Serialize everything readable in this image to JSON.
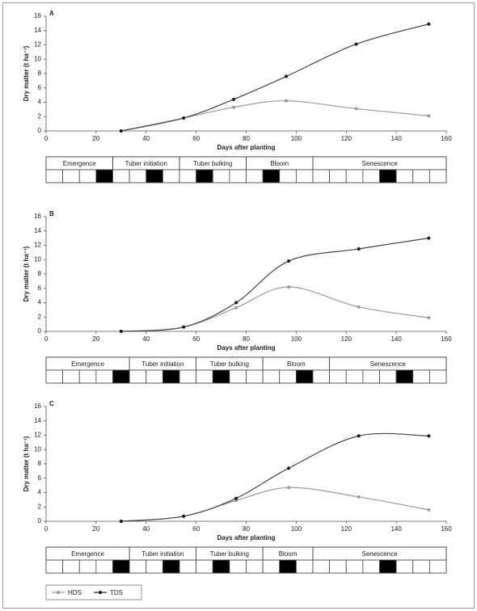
{
  "chart_data": [
    {
      "type": "line",
      "title": "A",
      "x_label": "Days after planting",
      "y_label": "Dry matter (t ha⁻¹)",
      "x": [
        30,
        55,
        75,
        96,
        124,
        153
      ],
      "series": [
        {
          "name": "HDS",
          "color": "#9a9a9a",
          "values": [
            0,
            1.8,
            3.3,
            4.2,
            3.1,
            2.1
          ]
        },
        {
          "name": "TDS",
          "color": "#1a1a1a",
          "values": [
            0,
            1.8,
            4.4,
            7.6,
            12.1,
            14.9
          ]
        }
      ],
      "xlim": [
        0,
        160
      ],
      "ylim": [
        0,
        16
      ],
      "xticks": [
        0,
        20,
        40,
        60,
        80,
        100,
        120,
        140,
        160
      ],
      "yticks": [
        0,
        2,
        4,
        6,
        8,
        10,
        12,
        14,
        16
      ],
      "phenology": [
        {
          "stage": "Emergence",
          "cells": [
            0,
            0,
            0,
            1
          ]
        },
        {
          "stage": "Tuber initiation",
          "cells": [
            0,
            0,
            1,
            0
          ]
        },
        {
          "stage": "Tuber bulking",
          "cells": [
            0,
            1,
            0,
            0
          ]
        },
        {
          "stage": "Bloom",
          "cells": [
            0,
            1,
            0,
            0
          ]
        },
        {
          "stage": "Senescence",
          "cells": [
            0,
            0,
            0,
            0,
            1,
            0,
            0,
            0
          ]
        }
      ]
    },
    {
      "type": "line",
      "title": "B",
      "x_label": "Days after planting",
      "y_label": "Dry matter (t ha⁻¹)",
      "x": [
        30,
        55,
        76,
        97,
        125,
        153
      ],
      "series": [
        {
          "name": "HDS",
          "color": "#9a9a9a",
          "values": [
            0,
            0.6,
            3.3,
            6.2,
            3.4,
            1.9
          ]
        },
        {
          "name": "TDS",
          "color": "#1a1a1a",
          "values": [
            0,
            0.6,
            4.0,
            9.8,
            11.5,
            13.0
          ]
        }
      ],
      "xlim": [
        0,
        160
      ],
      "ylim": [
        0,
        16
      ],
      "xticks": [
        0,
        20,
        40,
        60,
        80,
        100,
        120,
        140,
        160
      ],
      "yticks": [
        0,
        2,
        4,
        6,
        8,
        10,
        12,
        14,
        16
      ],
      "phenology": [
        {
          "stage": "Emergence",
          "cells": [
            0,
            0,
            0,
            0,
            1
          ]
        },
        {
          "stage": "Tuber initiation",
          "cells": [
            0,
            0,
            1,
            0
          ]
        },
        {
          "stage": "Tuber bulking",
          "cells": [
            0,
            1,
            0,
            0
          ]
        },
        {
          "stage": "Bloom",
          "cells": [
            0,
            0,
            1,
            0
          ]
        },
        {
          "stage": "Senescence",
          "cells": [
            0,
            0,
            0,
            0,
            1,
            0,
            0
          ]
        }
      ]
    },
    {
      "type": "line",
      "title": "C",
      "x_label": "Days after planting",
      "y_label": "Dry matter (t ha⁻¹)",
      "x": [
        30,
        55,
        76,
        97,
        125,
        153
      ],
      "series": [
        {
          "name": "HDS",
          "color": "#9a9a9a",
          "values": [
            0,
            0.7,
            2.9,
            4.7,
            3.4,
            1.6
          ]
        },
        {
          "name": "TDS",
          "color": "#1a1a1a",
          "values": [
            0,
            0.7,
            3.2,
            7.4,
            11.9,
            11.9
          ]
        }
      ],
      "xlim": [
        0,
        160
      ],
      "ylim": [
        0,
        16
      ],
      "xticks": [
        0,
        20,
        40,
        60,
        80,
        100,
        120,
        140,
        160
      ],
      "yticks": [
        0,
        2,
        4,
        6,
        8,
        10,
        12,
        14,
        16
      ],
      "phenology": [
        {
          "stage": "Emergence",
          "cells": [
            0,
            0,
            0,
            0,
            1
          ]
        },
        {
          "stage": "Tuber initiation",
          "cells": [
            0,
            0,
            1,
            0
          ]
        },
        {
          "stage": "Tuber bulking",
          "cells": [
            0,
            1,
            0,
            0
          ]
        },
        {
          "stage": "Bloom",
          "cells": [
            0,
            1,
            0
          ]
        },
        {
          "stage": "Senescence",
          "cells": [
            0,
            0,
            0,
            0,
            1,
            0,
            0,
            0
          ]
        }
      ]
    }
  ]
}
